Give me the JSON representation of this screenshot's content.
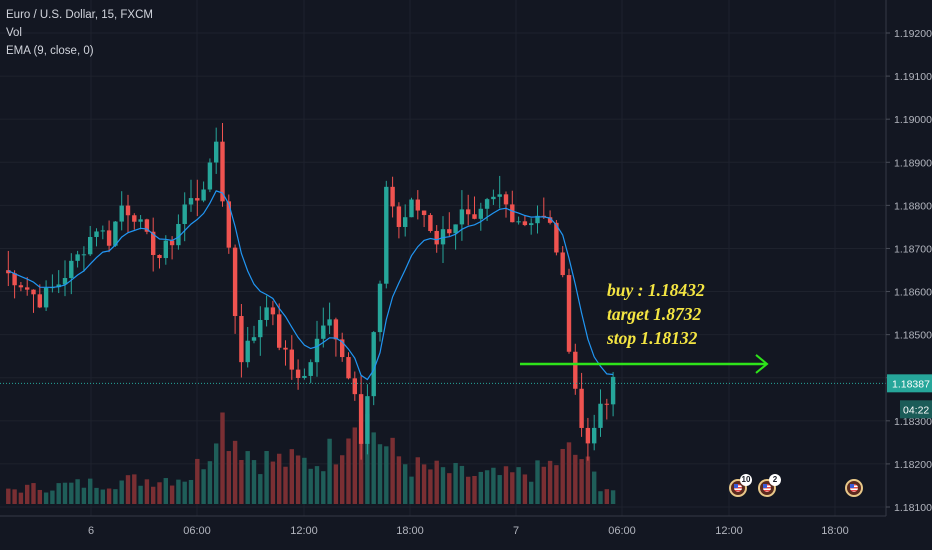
{
  "legend": {
    "symbol": "Euro / U.S. Dollar, 15, FXCM",
    "volume": "Vol",
    "ema": "EMA (9, close, 0)"
  },
  "annotation": {
    "line1": "buy : 1.18432",
    "line2": "target 1.8732",
    "line3": "stop 1.18132"
  },
  "events": [
    {
      "count": "10"
    },
    {
      "count": "2"
    },
    {
      "count": ""
    }
  ],
  "colors": {
    "background": "#131722",
    "up": "#26a69a",
    "down": "#ef5350",
    "ema": "#2196f3",
    "arrow": "#2ee31a",
    "note_text": "#f4e542",
    "price_line": "#26a69a"
  },
  "chart_data": {
    "type": "candlestick",
    "title": "Euro / U.S. Dollar, 15, FXCM",
    "y_ticks": [
      "1.19200",
      "1.19100",
      "1.19000",
      "1.18900",
      "1.18800",
      "1.18700",
      "1.18600",
      "1.18500",
      "1.18400",
      "1.18300",
      "1.18200",
      "1.18100"
    ],
    "ylim": [
      1.1808,
      1.1925
    ],
    "x_ticks": [
      "6",
      "06:00",
      "12:00",
      "18:00",
      "7",
      "06:00",
      "12:00",
      "18:00"
    ],
    "current_price": "1.18387",
    "countdown": "04:22",
    "buy_level": 1.18432,
    "arrow_price": 1.18432,
    "indicators": [
      "Vol",
      "EMA (9, close, 0)"
    ],
    "close_path": [
      [
        0,
        1.1865
      ],
      [
        3,
        1.1862
      ],
      [
        6,
        1.1858
      ],
      [
        9,
        1.1862
      ],
      [
        12,
        1.1868
      ],
      [
        15,
        1.1875
      ],
      [
        17,
        1.1872
      ],
      [
        19,
        1.188
      ],
      [
        21,
        1.1878
      ],
      [
        23,
        1.1872
      ],
      [
        25,
        1.1868
      ],
      [
        27,
        1.1872
      ],
      [
        29,
        1.188
      ],
      [
        31,
        1.1882
      ],
      [
        33,
        1.1888
      ],
      [
        34,
        1.1895
      ],
      [
        35,
        1.1882
      ],
      [
        36,
        1.187
      ],
      [
        37,
        1.1855
      ],
      [
        38,
        1.1845
      ],
      [
        40,
        1.185
      ],
      [
        42,
        1.1858
      ],
      [
        44,
        1.1848
      ],
      [
        46,
        1.1842
      ],
      [
        48,
        1.184
      ],
      [
        50,
        1.1848
      ],
      [
        52,
        1.1855
      ],
      [
        54,
        1.1845
      ],
      [
        56,
        1.1838
      ],
      [
        57,
        1.1825
      ],
      [
        58,
        1.1835
      ],
      [
        59,
        1.185
      ],
      [
        60,
        1.186
      ],
      [
        61,
        1.1885
      ],
      [
        63,
        1.1875
      ],
      [
        65,
        1.188
      ],
      [
        67,
        1.1878
      ],
      [
        69,
        1.1872
      ],
      [
        71,
        1.1875
      ],
      [
        73,
        1.1878
      ],
      [
        75,
        1.1875
      ],
      [
        77,
        1.188
      ],
      [
        79,
        1.1882
      ],
      [
        81,
        1.1878
      ],
      [
        83,
        1.1876
      ],
      [
        85,
        1.1878
      ],
      [
        87,
        1.1875
      ],
      [
        88,
        1.187
      ],
      [
        89,
        1.1862
      ],
      [
        90,
        1.1848
      ],
      [
        91,
        1.1838
      ],
      [
        92,
        1.1828
      ],
      [
        93,
        1.1825
      ],
      [
        94,
        1.183
      ],
      [
        95,
        1.1832
      ],
      [
        96,
        1.1834
      ],
      [
        97,
        1.18387
      ]
    ],
    "volume_path": [
      [
        0,
        0.15
      ],
      [
        10,
        0.2
      ],
      [
        20,
        0.25
      ],
      [
        30,
        0.3
      ],
      [
        33,
        0.6
      ],
      [
        34,
        1.0
      ],
      [
        36,
        0.8
      ],
      [
        40,
        0.5
      ],
      [
        45,
        0.45
      ],
      [
        50,
        0.45
      ],
      [
        53,
        0.6
      ],
      [
        55,
        0.9
      ],
      [
        57,
        1.0
      ],
      [
        59,
        0.8
      ],
      [
        61,
        0.6
      ],
      [
        65,
        0.4
      ],
      [
        70,
        0.35
      ],
      [
        75,
        0.3
      ],
      [
        80,
        0.3
      ],
      [
        85,
        0.35
      ],
      [
        88,
        0.45
      ],
      [
        90,
        0.55
      ],
      [
        92,
        0.5
      ],
      [
        95,
        0.2
      ],
      [
        97,
        0.15
      ]
    ]
  }
}
